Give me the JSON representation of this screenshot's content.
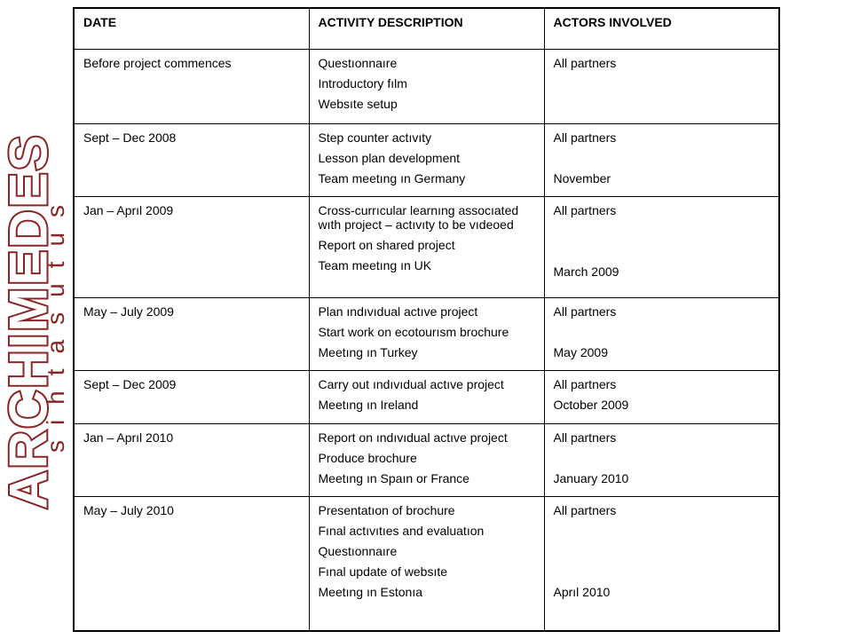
{
  "logo": {
    "main": "ARCHIMEDES",
    "sub": "sihtasutus",
    "color": "#8b2424"
  },
  "table": {
    "headers": [
      "DATE",
      "ACTIVITY DESCRIPTION",
      "ACTORS INVOLVED"
    ],
    "rows": [
      {
        "date": "Before project commences",
        "activities": [
          "Questıonnaıre",
          "Introductory fılm",
          "Websıte setup"
        ],
        "actors": [
          "All partners"
        ]
      },
      {
        "date": "Sept – Dec 2008",
        "activities": [
          "Step counter actıvıty",
          "Lesson plan development",
          "Team meetıng ın Germany"
        ],
        "actors": [
          "All partners",
          "November"
        ]
      },
      {
        "date": "Jan – Aprıl 2009",
        "activities": [
          "Cross-currıcular learnıng assocıated wıth project – actıvıty to be vıdeoed",
          "Report on shared project",
          "Team meetıng ın UK"
        ],
        "actors": [
          "All partners",
          "March 2009"
        ]
      },
      {
        "date": "May – July 2009",
        "activities": [
          "Plan ındıvıdual actıve project",
          "Start work on ecotourısm brochure",
          "Meetıng ın Turkey"
        ],
        "actors": [
          "All partners",
          "May 2009"
        ]
      },
      {
        "date": "Sept – Dec 2009",
        "activities": [
          "Carry out ındıvıdual actıve project",
          "Meetıng ın Ireland"
        ],
        "actors": [
          "All partners",
          "October 2009"
        ]
      },
      {
        "date": "Jan – Aprıl 2010",
        "activities": [
          "Report on ındıvıdual actıve project",
          "Produce brochure",
          "Meetıng ın Spaın or France"
        ],
        "actors": [
          "All partners",
          "January 2010"
        ]
      },
      {
        "date": "May – July 2010",
        "activities": [
          "Presentatıon of brochure",
          "Fınal actıvıtıes and evaluatıon",
          "Questıonnaıre",
          "Fınal update of websıte",
          "Meetıng ın Estonıa"
        ],
        "actors": [
          "All partners",
          "Aprıl 2010"
        ]
      }
    ]
  }
}
